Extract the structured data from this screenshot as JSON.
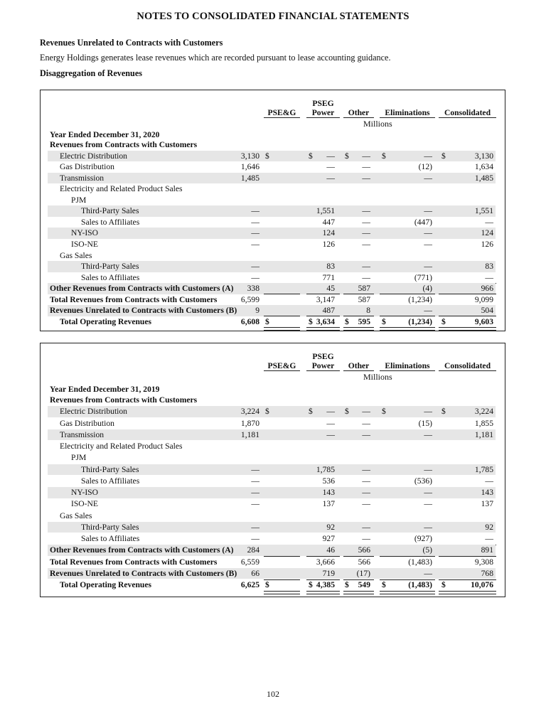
{
  "page_title": "NOTES TO CONSOLIDATED FINANCIAL STATEMENTS",
  "section_heading": "Revenues Unrelated to Contracts with Customers",
  "section_paragraph": "Energy Holdings generates lease revenues which are recorded pursuant to lease accounting guidance.",
  "subsection_heading": "Disaggregation of Revenues",
  "columns": {
    "pseg": "PSE&G",
    "power_line1": "PSEG",
    "power_line2": "Power",
    "other": "Other",
    "elim": "Eliminations",
    "cons": "Consolidated",
    "units": "Millions"
  },
  "tables": [
    {
      "year_label": "Year Ended December 31, 2020",
      "rows": [
        {
          "label": "Revenues from Contracts with Customers",
          "indent": 0,
          "bold": true,
          "shade": false,
          "cells": [
            "",
            "",
            "",
            "",
            ""
          ]
        },
        {
          "label": "Electric Distribution",
          "indent": 1,
          "bold": false,
          "shade": true,
          "dollar": true,
          "cells": [
            "3,130",
            "—",
            "—",
            "—",
            "3,130"
          ]
        },
        {
          "label": "Gas Distribution",
          "indent": 1,
          "bold": false,
          "shade": false,
          "cells": [
            "1,646",
            "—",
            "—",
            "(12)",
            "1,634"
          ]
        },
        {
          "label": "Transmission",
          "indent": 1,
          "bold": false,
          "shade": true,
          "cells": [
            "1,485",
            "—",
            "—",
            "—",
            "1,485"
          ]
        },
        {
          "label": "Electricity and Related Product Sales",
          "indent": 1,
          "bold": false,
          "shade": false,
          "cells": [
            "",
            "",
            "",
            "",
            ""
          ]
        },
        {
          "label": "PJM",
          "indent": 2,
          "bold": false,
          "shade": false,
          "cells": [
            "",
            "",
            "",
            "",
            ""
          ]
        },
        {
          "label": "Third-Party Sales",
          "indent": 3,
          "bold": false,
          "shade": true,
          "cells": [
            "—",
            "1,551",
            "—",
            "—",
            "1,551"
          ]
        },
        {
          "label": "Sales to Affiliates",
          "indent": 3,
          "bold": false,
          "shade": false,
          "cells": [
            "—",
            "447",
            "—",
            "(447)",
            "—"
          ]
        },
        {
          "label": "NY-ISO",
          "indent": 2,
          "bold": false,
          "shade": true,
          "cells": [
            "—",
            "124",
            "—",
            "—",
            "124"
          ]
        },
        {
          "label": "ISO-NE",
          "indent": 2,
          "bold": false,
          "shade": false,
          "cells": [
            "—",
            "126",
            "—",
            "—",
            "126"
          ]
        },
        {
          "label": "Gas Sales",
          "indent": 1,
          "bold": false,
          "shade": false,
          "cells": [
            "",
            "",
            "",
            "",
            ""
          ]
        },
        {
          "label": "Third-Party Sales",
          "indent": 3,
          "bold": false,
          "shade": true,
          "cells": [
            "—",
            "83",
            "—",
            "—",
            "83"
          ]
        },
        {
          "label": "Sales to Affiliates",
          "indent": 3,
          "bold": false,
          "shade": false,
          "underline": true,
          "cells": [
            "—",
            "771",
            "—",
            "(771)",
            "—"
          ]
        },
        {
          "label": "Other Revenues from Contracts with Customers (A)",
          "indent": 0,
          "bold": true,
          "shade": true,
          "bold_values": false,
          "underline": true,
          "cells": [
            "338",
            "45",
            "587",
            "(4)",
            "966"
          ]
        },
        {
          "label": "Total Revenues from Contracts with Customers",
          "indent": 0,
          "bold": true,
          "shade": false,
          "bold_values": false,
          "cells": [
            "6,599",
            "3,147",
            "587",
            "(1,234)",
            "9,099"
          ]
        },
        {
          "label": "Revenues Unrelated to Contracts with Customers (B)",
          "indent": 0,
          "bold": true,
          "shade": true,
          "bold_values": false,
          "underline": true,
          "cells": [
            "9",
            "487",
            "8",
            "—",
            "504"
          ]
        },
        {
          "label": "Total Operating Revenues",
          "indent": 1,
          "bold": true,
          "shade": false,
          "bold_values": true,
          "dollar": true,
          "total": true,
          "cells": [
            "6,608",
            "3,634",
            "595",
            "(1,234)",
            "9,603"
          ]
        }
      ]
    },
    {
      "year_label": "Year Ended December 31, 2019",
      "rows": [
        {
          "label": "Revenues from Contracts with Customers",
          "indent": 0,
          "bold": true,
          "shade": false,
          "cells": [
            "",
            "",
            "",
            "",
            ""
          ]
        },
        {
          "label": "Electric Distribution",
          "indent": 1,
          "bold": false,
          "shade": true,
          "dollar": true,
          "cells": [
            "3,224",
            "—",
            "—",
            "—",
            "3,224"
          ]
        },
        {
          "label": "Gas Distribution",
          "indent": 1,
          "bold": false,
          "shade": false,
          "cells": [
            "1,870",
            "—",
            "—",
            "(15)",
            "1,855"
          ]
        },
        {
          "label": "Transmission",
          "indent": 1,
          "bold": false,
          "shade": true,
          "cells": [
            "1,181",
            "—",
            "—",
            "—",
            "1,181"
          ]
        },
        {
          "label": "Electricity and Related Product Sales",
          "indent": 1,
          "bold": false,
          "shade": false,
          "cells": [
            "",
            "",
            "",
            "",
            ""
          ]
        },
        {
          "label": "PJM",
          "indent": 2,
          "bold": false,
          "shade": false,
          "cells": [
            "",
            "",
            "",
            "",
            ""
          ]
        },
        {
          "label": "Third-Party Sales",
          "indent": 3,
          "bold": false,
          "shade": true,
          "cells": [
            "—",
            "1,785",
            "—",
            "—",
            "1,785"
          ]
        },
        {
          "label": "Sales to Affiliates",
          "indent": 3,
          "bold": false,
          "shade": false,
          "cells": [
            "—",
            "536",
            "—",
            "(536)",
            "—"
          ]
        },
        {
          "label": "NY-ISO",
          "indent": 2,
          "bold": false,
          "shade": true,
          "cells": [
            "—",
            "143",
            "—",
            "—",
            "143"
          ]
        },
        {
          "label": "ISO-NE",
          "indent": 2,
          "bold": false,
          "shade": false,
          "cells": [
            "—",
            "137",
            "—",
            "—",
            "137"
          ]
        },
        {
          "label": "Gas Sales",
          "indent": 1,
          "bold": false,
          "shade": false,
          "cells": [
            "",
            "",
            "",
            "",
            ""
          ]
        },
        {
          "label": "Third-Party Sales",
          "indent": 3,
          "bold": false,
          "shade": true,
          "cells": [
            "—",
            "92",
            "—",
            "—",
            "92"
          ]
        },
        {
          "label": "Sales to Affiliates",
          "indent": 3,
          "bold": false,
          "shade": false,
          "underline": true,
          "cells": [
            "—",
            "927",
            "—",
            "(927)",
            "—"
          ]
        },
        {
          "label": "Other Revenues from Contracts with Customers (A)",
          "indent": 0,
          "bold": true,
          "shade": true,
          "bold_values": false,
          "underline": true,
          "cells": [
            "284",
            "46",
            "566",
            "(5)",
            "891"
          ]
        },
        {
          "label": "Total Revenues from Contracts with Customers",
          "indent": 0,
          "bold": true,
          "shade": false,
          "bold_values": false,
          "cells": [
            "6,559",
            "3,666",
            "566",
            "(1,483)",
            "9,308"
          ]
        },
        {
          "label": "Revenues Unrelated to Contracts with Customers (B)",
          "indent": 0,
          "bold": true,
          "shade": true,
          "bold_values": false,
          "underline": true,
          "cells": [
            "66",
            "719",
            "(17)",
            "—",
            "768"
          ]
        },
        {
          "label": "Total Operating Revenues",
          "indent": 1,
          "bold": true,
          "shade": false,
          "bold_values": true,
          "dollar": true,
          "total": true,
          "cells": [
            "6,625",
            "4,385",
            "549",
            "(1,483)",
            "10,076"
          ]
        }
      ]
    }
  ],
  "dollar_sign": "$",
  "page_number": "102"
}
